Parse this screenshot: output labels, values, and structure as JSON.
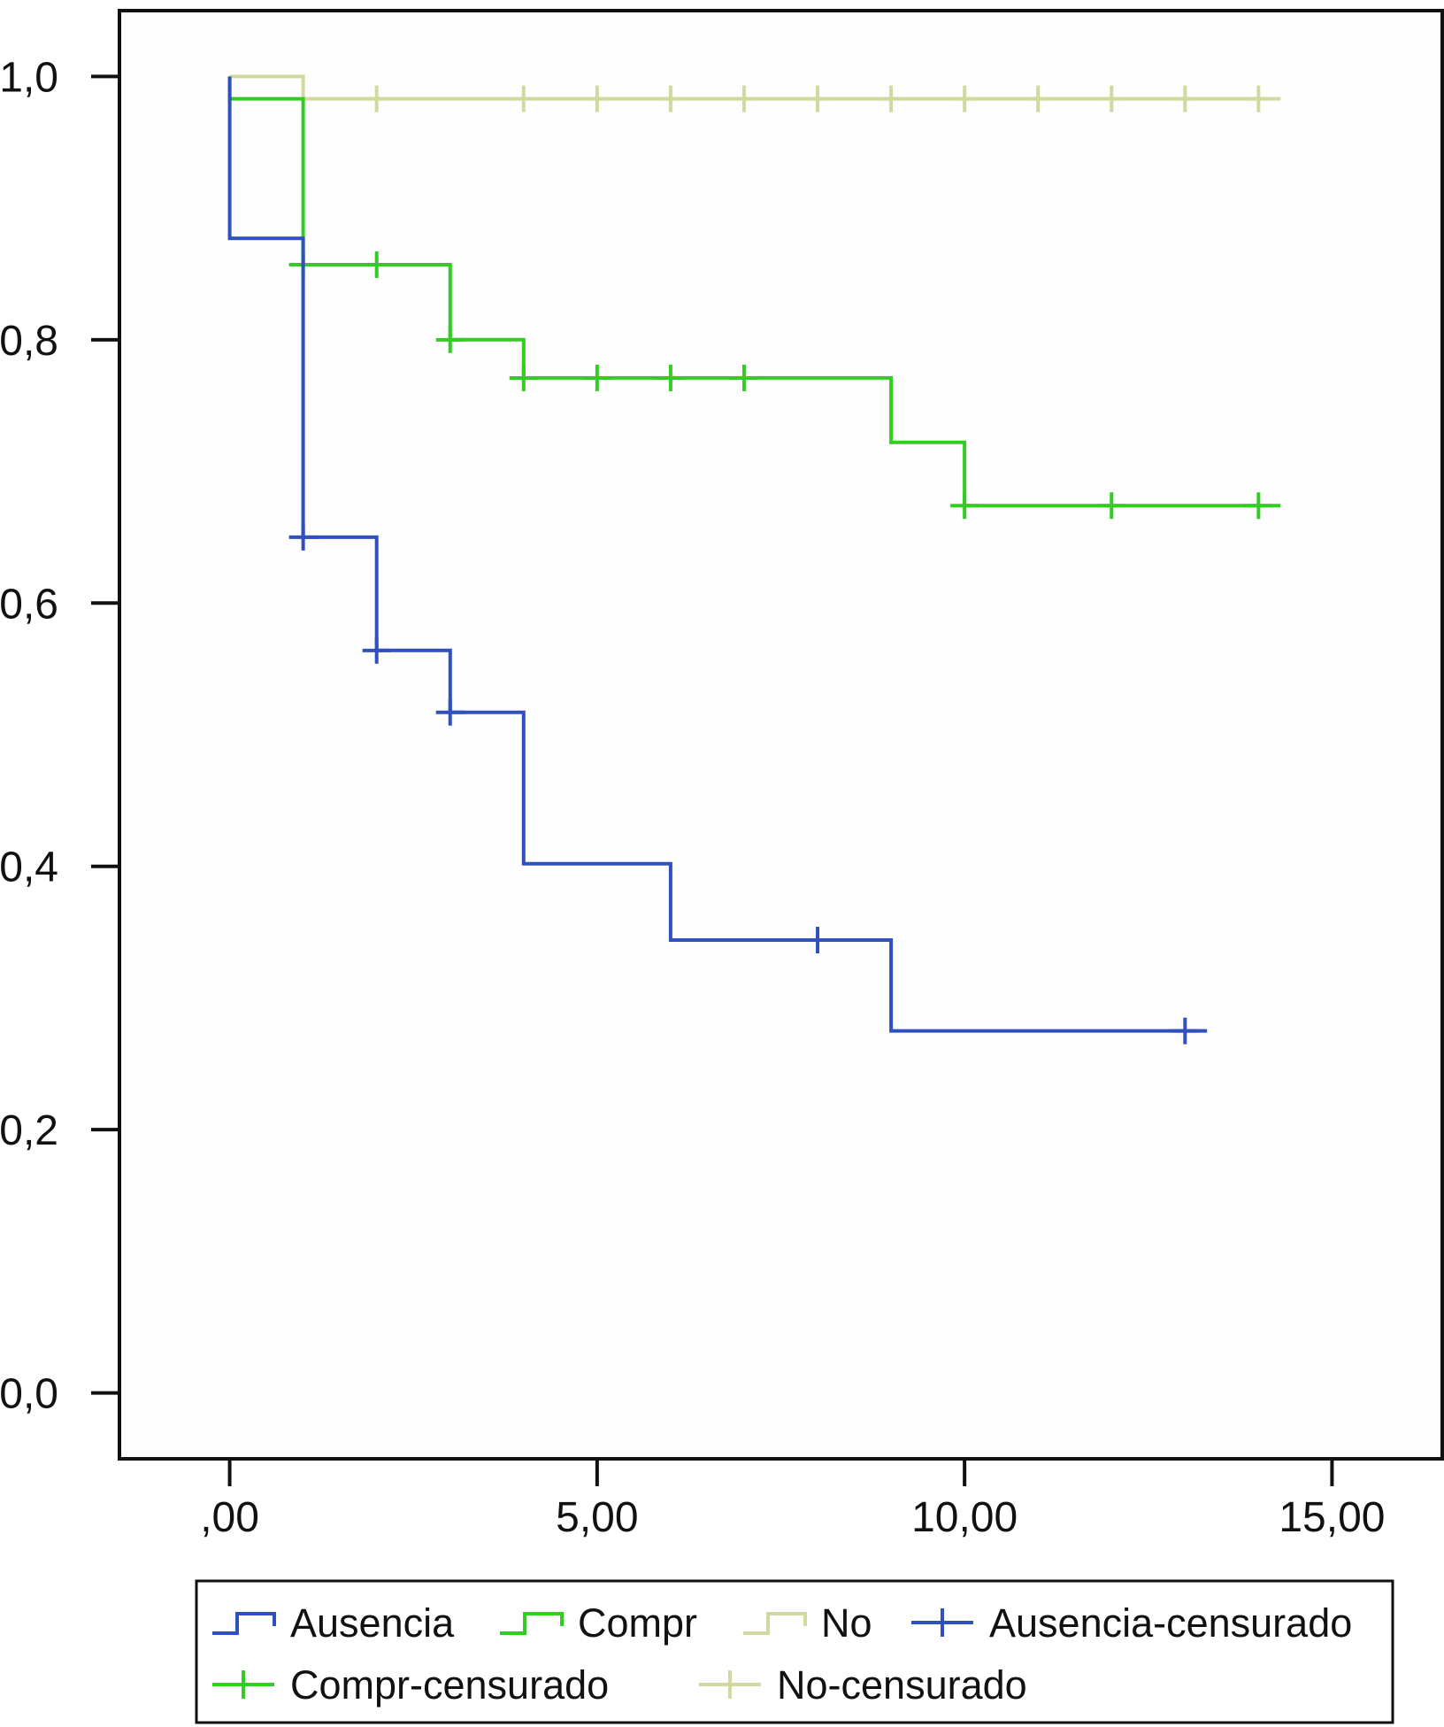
{
  "chart_data": {
    "type": "line",
    "subtype": "kaplan-meier-step",
    "title": "",
    "xlabel": "",
    "ylabel": "",
    "xlim": [
      -1.5,
      16.5
    ],
    "ylim": [
      -0.05,
      1.05
    ],
    "x_ticks": [
      0,
      5,
      10,
      15
    ],
    "x_tick_labels": [
      ",00",
      "5,00",
      "10,00",
      "15,00"
    ],
    "y_ticks": [
      0,
      0.2,
      0.4,
      0.6,
      0.8,
      1.0
    ],
    "y_tick_labels": [
      "0,0",
      "0,2",
      "0,4",
      "0,6",
      "0,8",
      "1,0"
    ],
    "grid": false,
    "legend_position": "bottom",
    "series": [
      {
        "name": "Ausencia",
        "color": "#3050c0",
        "steps": [
          [
            0,
            1.0
          ],
          [
            0,
            0.877
          ],
          [
            1,
            0.877
          ],
          [
            1,
            0.65
          ],
          [
            2,
            0.65
          ],
          [
            2,
            0.564
          ],
          [
            3,
            0.564
          ],
          [
            3,
            0.517
          ],
          [
            4,
            0.517
          ],
          [
            4,
            0.402
          ],
          [
            6,
            0.402
          ],
          [
            6,
            0.344
          ],
          [
            9,
            0.344
          ],
          [
            9,
            0.275
          ],
          [
            13.3,
            0.275
          ]
        ],
        "censored": [
          [
            1,
            0.65
          ],
          [
            2,
            0.564
          ],
          [
            3,
            0.517
          ],
          [
            8,
            0.344
          ],
          [
            13,
            0.275
          ]
        ]
      },
      {
        "name": "Compr",
        "color": "#33cc22",
        "steps": [
          [
            0,
            1.0
          ],
          [
            0,
            0.983
          ],
          [
            1,
            0.983
          ],
          [
            1,
            0.857
          ],
          [
            3,
            0.857
          ],
          [
            3,
            0.8
          ],
          [
            4,
            0.8
          ],
          [
            4,
            0.771
          ],
          [
            9,
            0.771
          ],
          [
            9,
            0.722
          ],
          [
            10,
            0.722
          ],
          [
            10,
            0.674
          ],
          [
            14.3,
            0.674
          ]
        ],
        "censored": [
          [
            1,
            0.857
          ],
          [
            2,
            0.857
          ],
          [
            3,
            0.8
          ],
          [
            4,
            0.771
          ],
          [
            5,
            0.771
          ],
          [
            6,
            0.771
          ],
          [
            7,
            0.771
          ],
          [
            10,
            0.674
          ],
          [
            12,
            0.674
          ],
          [
            14,
            0.674
          ]
        ]
      },
      {
        "name": "No",
        "color": "#d2d8a0",
        "steps": [
          [
            0,
            1.0
          ],
          [
            1,
            1.0
          ],
          [
            1,
            0.983
          ],
          [
            14.3,
            0.983
          ]
        ],
        "censored": [
          [
            2,
            0.983
          ],
          [
            4,
            0.983
          ],
          [
            5,
            0.983
          ],
          [
            6,
            0.983
          ],
          [
            7,
            0.983
          ],
          [
            8,
            0.983
          ],
          [
            9,
            0.983
          ],
          [
            10,
            0.983
          ],
          [
            11,
            0.983
          ],
          [
            12,
            0.983
          ],
          [
            13,
            0.983
          ],
          [
            14,
            0.983
          ]
        ]
      }
    ],
    "legend": [
      {
        "label": "Ausencia",
        "kind": "step",
        "color": "#3050c0"
      },
      {
        "label": "Compr",
        "kind": "step",
        "color": "#33cc22"
      },
      {
        "label": "No",
        "kind": "step",
        "color": "#d2d8a0"
      },
      {
        "label": "Ausencia-censurado",
        "kind": "censor",
        "color": "#3050c0"
      },
      {
        "label": "Compr-censurado",
        "kind": "censor",
        "color": "#33cc22"
      },
      {
        "label": "No-censurado",
        "kind": "censor",
        "color": "#d2d8a0"
      }
    ]
  }
}
